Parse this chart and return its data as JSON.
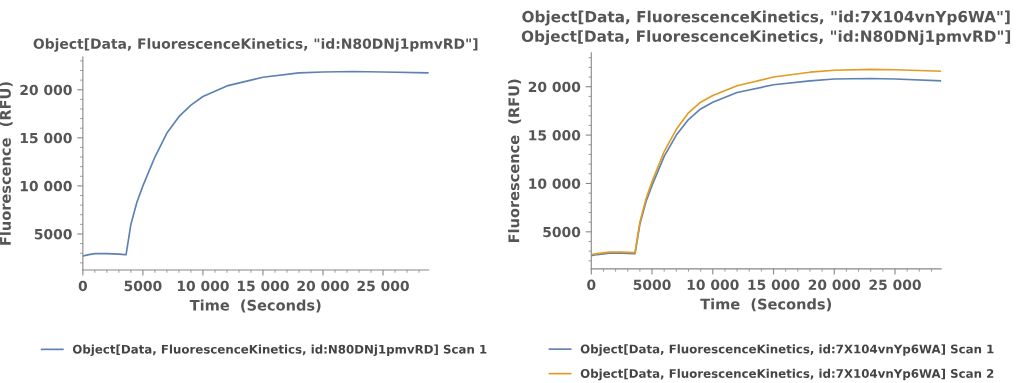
{
  "chart_data": [
    {
      "type": "line",
      "title": "Object[Data, FluorescenceKinetics, \"id:N80DNj1pmvRD\"]",
      "xlabel": "Time  (Seconds)",
      "ylabel": "Fluorescence  (RFU)",
      "xlim": [
        0,
        28800
      ],
      "ylim": [
        1250,
        23400
      ],
      "xticks": [
        0,
        5000,
        {
          "value": 10000,
          "label": "10 000"
        },
        {
          "value": 15000,
          "label": "15 000"
        },
        {
          "value": 20000,
          "label": "20 000"
        },
        {
          "value": 25000,
          "label": "25 000"
        }
      ],
      "yticks": [
        5000,
        {
          "value": 10000,
          "label": "10 000"
        },
        {
          "value": 15000,
          "label": "15 000"
        },
        {
          "value": 20000,
          "label": "20 000"
        }
      ],
      "grid": false,
      "legend": "bottom",
      "series": [
        {
          "name": "Object[Data, FluorescenceKinetics, id:N80DNj1pmvRD] Scan 1",
          "color": "#5e81b5",
          "x": [
            0,
            500,
            1000,
            2000,
            3000,
            3500,
            3600,
            4000,
            4500,
            5000,
            6000,
            7000,
            8000,
            9000,
            10000,
            12000,
            14000,
            15000,
            18000,
            20000,
            22500,
            25000,
            28800
          ],
          "values": [
            2700,
            2850,
            2950,
            2950,
            2900,
            2850,
            2850,
            6000,
            8300,
            10000,
            13000,
            15500,
            17200,
            18400,
            19300,
            20400,
            21000,
            21300,
            21750,
            21850,
            21900,
            21850,
            21750
          ]
        }
      ]
    },
    {
      "type": "line",
      "title": "Object[Data, FluorescenceKinetics, \"id:7X104vnYp6WA\"]",
      "subtitle": "Object[Data, FluorescenceKinetics, \"id:N80DNj1pmvRD\"]",
      "xlabel": "Time  (Seconds)",
      "ylabel": "Fluorescence  (RFU)",
      "xlim": [
        0,
        28800
      ],
      "ylim": [
        1170,
        23500
      ],
      "xticks": [
        0,
        5000,
        {
          "value": 10000,
          "label": "10 000"
        },
        {
          "value": 15000,
          "label": "15 000"
        },
        {
          "value": 20000,
          "label": "20 000"
        },
        {
          "value": 25000,
          "label": "25 000"
        }
      ],
      "yticks": [
        5000,
        {
          "value": 10000,
          "label": "10 000"
        },
        {
          "value": 15000,
          "label": "15 000"
        },
        {
          "value": 20000,
          "label": "20 000"
        }
      ],
      "grid": false,
      "legend": "bottom",
      "series": [
        {
          "name": "Object[Data, FluorescenceKinetics, id:7X104vnYp6WA] Scan 1",
          "color": "#5e81b5",
          "x": [
            0,
            500,
            1500,
            2500,
            3500,
            3600,
            4000,
            4500,
            5000,
            6000,
            7000,
            8000,
            9000,
            10000,
            12000,
            15000,
            18000,
            20000,
            23000,
            25000,
            28800
          ],
          "values": [
            2550,
            2650,
            2800,
            2800,
            2750,
            2750,
            5800,
            8100,
            9800,
            12800,
            15000,
            16600,
            17700,
            18400,
            19400,
            20200,
            20600,
            20800,
            20850,
            20800,
            20600
          ]
        },
        {
          "name": "Object[Data, FluorescenceKinetics, id:7X104vnYp6WA] Scan 2",
          "color": "#e19c24",
          "x": [
            0,
            500,
            1500,
            2500,
            3500,
            3600,
            4000,
            4500,
            5000,
            6000,
            7000,
            8000,
            9000,
            10000,
            12000,
            15000,
            18000,
            20000,
            23000,
            25000,
            28800
          ],
          "values": [
            2650,
            2750,
            2900,
            2900,
            2850,
            2850,
            6000,
            8400,
            10200,
            13300,
            15600,
            17300,
            18400,
            19100,
            20100,
            21000,
            21500,
            21700,
            21800,
            21750,
            21600
          ]
        }
      ]
    }
  ]
}
